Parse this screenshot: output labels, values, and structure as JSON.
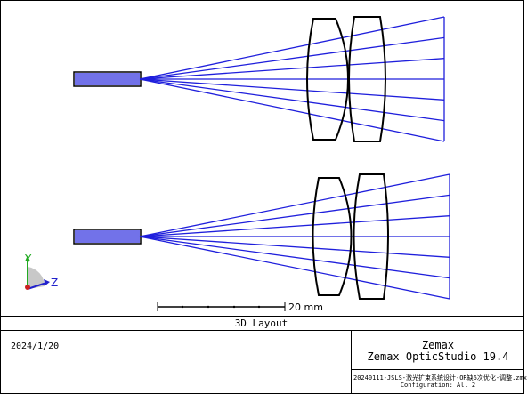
{
  "layout_title": "3D Layout",
  "date": "2024/1/20",
  "brand": {
    "company": "Zemax",
    "product": "Zemax OpticStudio 19.4"
  },
  "file_name": "20240111-JSLS-激光扩束系统设计-OR缺6次优化-调整.zmx",
  "configuration": "Configuration: All 2",
  "scale_bar": {
    "label": "20 mm"
  },
  "axes": {
    "y": "Y",
    "z": "Z"
  },
  "colors": {
    "ray": "#1f1fdc",
    "lens": "#000000",
    "axis_y": "#22aa22",
    "axis_z": "#2222cc",
    "origin": "#cc2222"
  }
}
